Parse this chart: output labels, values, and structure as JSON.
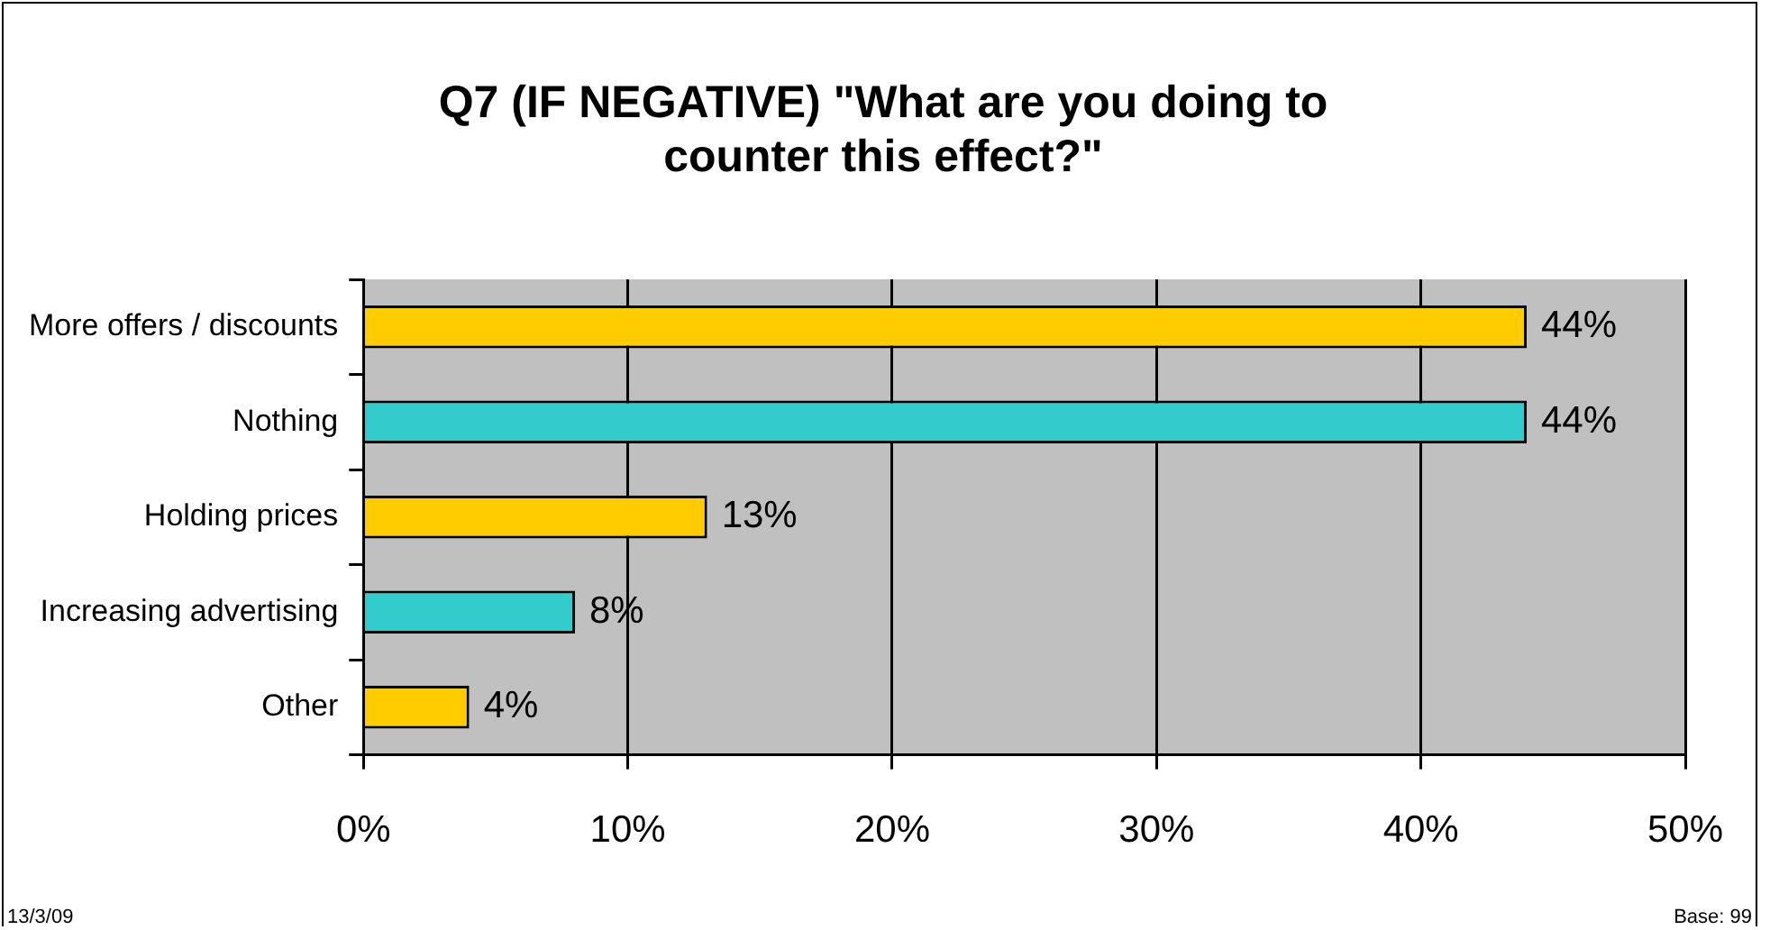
{
  "chart_data": {
    "type": "bar",
    "orientation": "horizontal",
    "title": "Q7 (IF NEGATIVE) \"What are you doing to counter this effect?\"",
    "categories": [
      "More offers / discounts",
      "Nothing",
      "Holding prices",
      "Increasing advertising",
      "Other"
    ],
    "values": [
      44,
      44,
      13,
      8,
      4
    ],
    "colors": [
      "#ffcc00",
      "#33cccc",
      "#ffcc00",
      "#33cccc",
      "#ffcc00"
    ],
    "value_labels": [
      "44%",
      "44%",
      "13%",
      "8%",
      "4%"
    ],
    "xlim": [
      0,
      50
    ],
    "xticks": [
      {
        "value": 0,
        "label": "0%"
      },
      {
        "value": 10,
        "label": "10%"
      },
      {
        "value": 20,
        "label": "20%"
      },
      {
        "value": 30,
        "label": "30%"
      },
      {
        "value": 40,
        "label": "40%"
      },
      {
        "value": 50,
        "label": "50%"
      }
    ],
    "grid": "x",
    "legend": false,
    "annotations": [
      "13/3/09",
      "Base: 99"
    ]
  }
}
